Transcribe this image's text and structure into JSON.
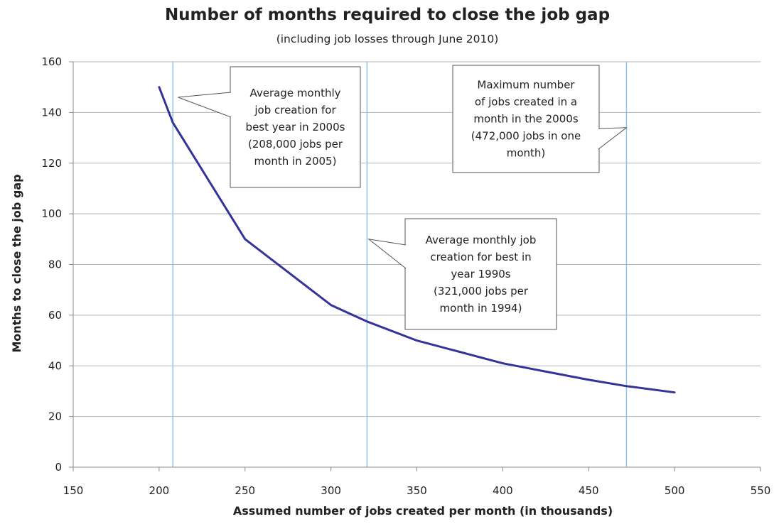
{
  "chart_data": {
    "type": "line",
    "title": "Number of months required to close the job gap",
    "subtitle": "(including job losses through June  2010)",
    "xlabel": "Assumed number of jobs created per month (in thousands)",
    "ylabel": "Months  to close the job gap",
    "xlim": [
      150,
      550
    ],
    "ylim": [
      0,
      160
    ],
    "x_ticks": [
      150,
      200,
      250,
      300,
      350,
      400,
      450,
      500,
      550
    ],
    "y_ticks": [
      0,
      20,
      40,
      60,
      80,
      100,
      120,
      140,
      160
    ],
    "grid": "horizontal",
    "legend": "none",
    "series": [
      {
        "color": "#333399",
        "x": [
          200,
          208,
          250,
          300,
          321,
          350,
          400,
          450,
          472,
          500
        ],
        "y": [
          150,
          136,
          90,
          64,
          57.5,
          50,
          41,
          34.5,
          32,
          29.5
        ]
      }
    ],
    "reference_lines": [
      {
        "x": 208,
        "color": "#8ec3e6"
      },
      {
        "x": 321,
        "color": "#8ec3e6"
      },
      {
        "x": 472,
        "color": "#8ec3e6"
      }
    ],
    "annotations": [
      {
        "lines": [
          "Average monthly",
          "job creation for",
          "best year in 2000s",
          "(208,000 jobs per",
          "month in 2005)"
        ],
        "pointer": {
          "x": 211,
          "y": 146
        }
      },
      {
        "lines": [
          "Maximum number",
          "of jobs created in a",
          "month in the 2000s",
          "(472,000 jobs in one",
          "month)"
        ],
        "pointer": {
          "x": 472,
          "y": 134
        }
      },
      {
        "lines": [
          "Average monthly job",
          "creation for best in",
          "year 1990s",
          "(321,000 jobs per",
          "month in 1994)"
        ],
        "pointer": {
          "x": 322,
          "y": 90
        }
      }
    ]
  }
}
